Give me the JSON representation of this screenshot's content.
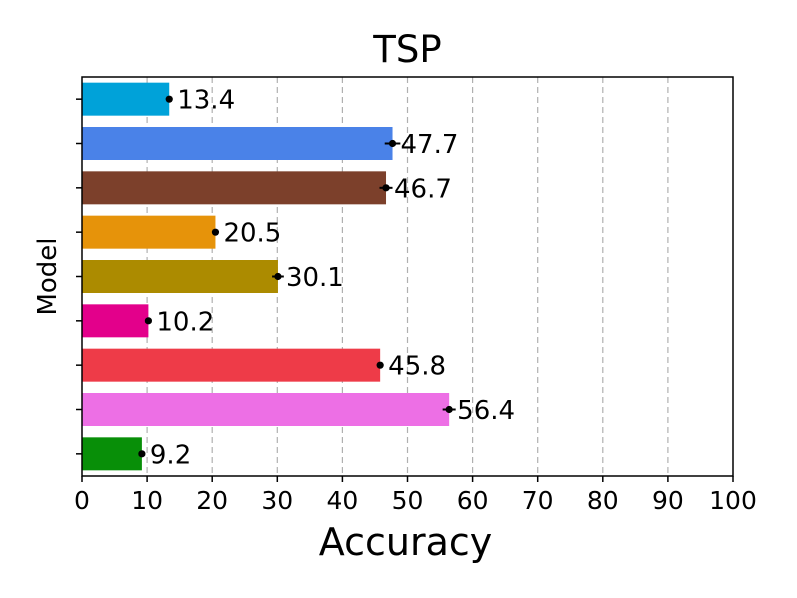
{
  "chart_data": {
    "type": "bar",
    "orientation": "horizontal",
    "title": "TSP",
    "xlabel": "Accuracy",
    "ylabel": "Model",
    "xlim": [
      0,
      100
    ],
    "xticks": [
      0,
      10,
      20,
      30,
      40,
      50,
      60,
      70,
      80,
      90,
      100
    ],
    "grid": "vertical dashed",
    "values": [
      13.4,
      47.7,
      46.7,
      20.5,
      30.1,
      10.2,
      45.8,
      56.4,
      9.2
    ],
    "value_labels": [
      "13.4",
      "47.7",
      "46.7",
      "20.5",
      "30.1",
      "10.2",
      "45.8",
      "56.4",
      "9.2"
    ],
    "error_bars": [
      0.3,
      1.2,
      1.0,
      0.3,
      0.9,
      0.2,
      0.3,
      1.0,
      0.4
    ],
    "colors": [
      "#00a2d9",
      "#4a82e8",
      "#7c402b",
      "#e6930a",
      "#ac8b00",
      "#e3008b",
      "#ee3b48",
      "#ed6fe5",
      "#088f08"
    ]
  }
}
